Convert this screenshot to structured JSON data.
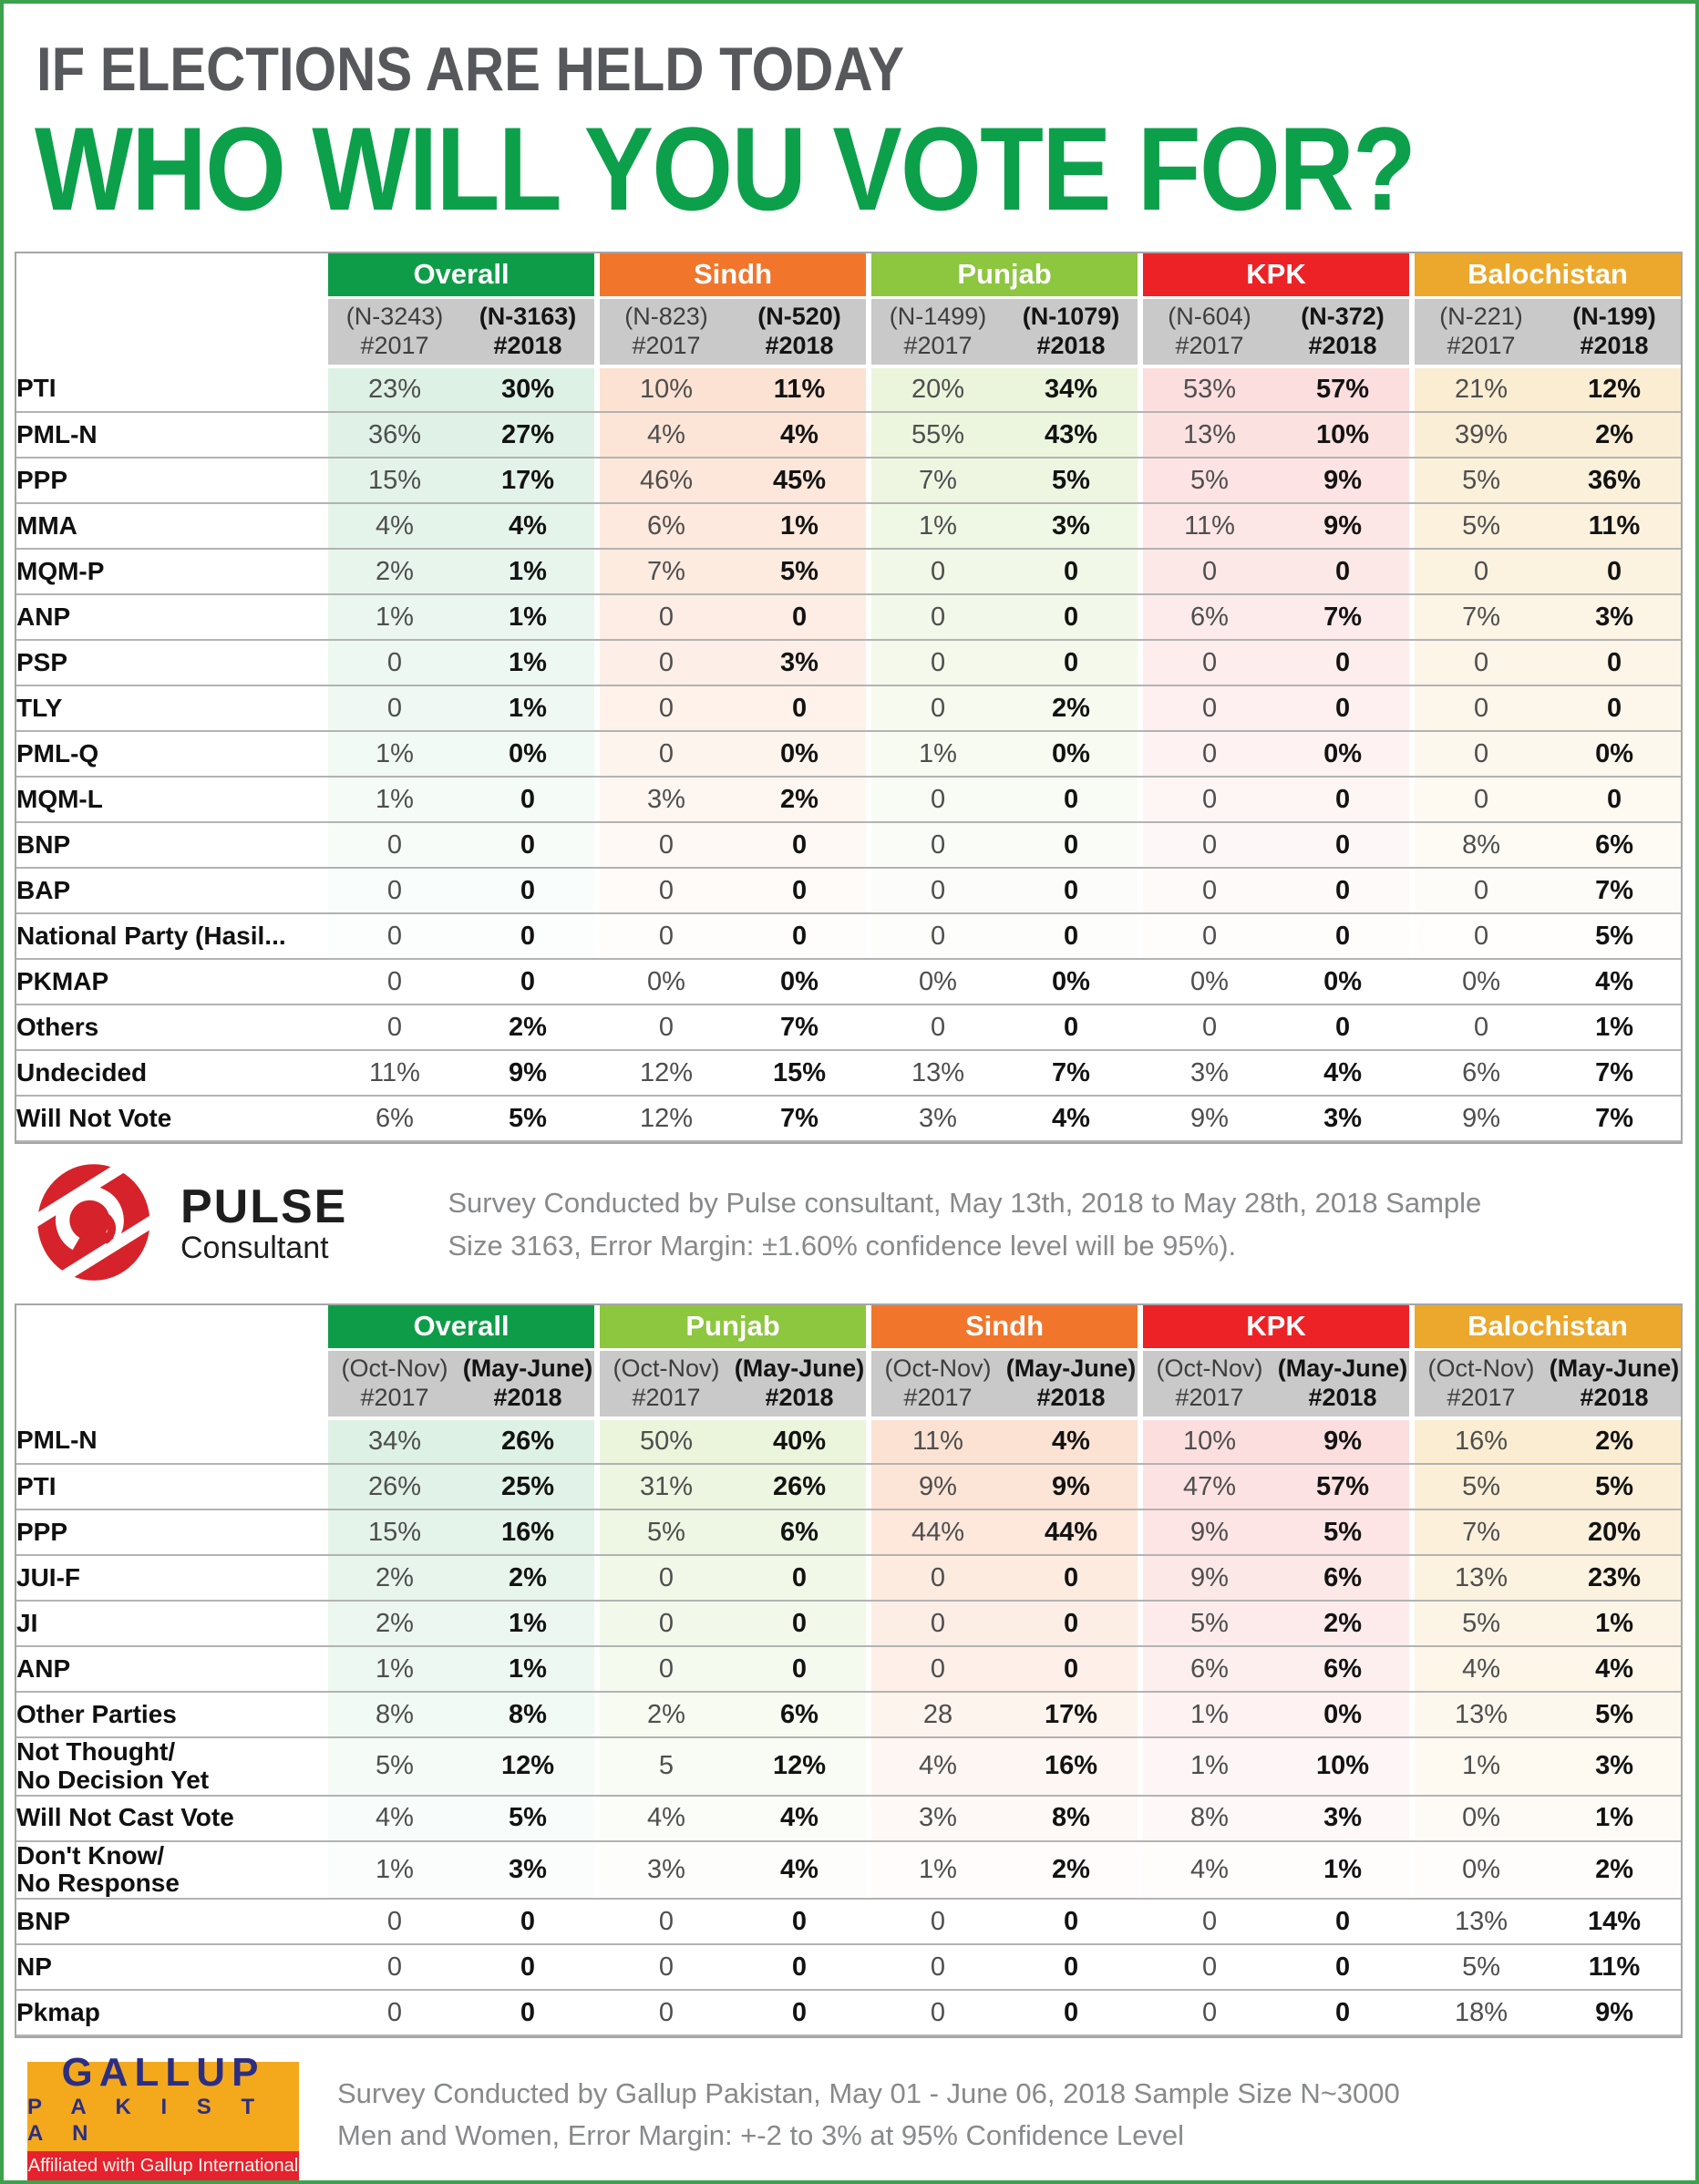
{
  "page": {
    "title_line1": "IF ELECTIONS ARE HELD TODAY",
    "title_line2": "WHO WILL YOU VOTE FOR?",
    "title_gray": "#57585B",
    "title_green": "#0DA04B",
    "page_border_green": "#3CA24D"
  },
  "chart_data": [
    {
      "type": "table",
      "title": "If elections are held today who will you vote for? (Pulse Consultant survey)",
      "fade_rows": 13,
      "groups": [
        {
          "label": "Overall",
          "color": "#0E9C48",
          "tint": "17,155,74",
          "alpha": 0.14,
          "sub2017": "(N-3243)",
          "sub2018": "(N-3163)",
          "year2017": "#2017",
          "year2018": "#2018"
        },
        {
          "label": "Sindh",
          "color": "#F1762C",
          "tint": "241,118,44",
          "alpha": 0.21,
          "sub2017": "(N-823)",
          "sub2018": "(N-520)",
          "year2017": "#2017",
          "year2018": "#2018"
        },
        {
          "label": "Punjab",
          "color": "#8DC63F",
          "tint": "141,198,63",
          "alpha": 0.18,
          "sub2017": "(N-1499)",
          "sub2018": "(N-1079)",
          "year2017": "#2017",
          "year2018": "#2018"
        },
        {
          "label": "KPK",
          "color": "#EC2227",
          "tint": "236,34,39",
          "alpha": 0.15,
          "sub2017": "(N-604)",
          "sub2018": "(N-372)",
          "year2017": "#2017",
          "year2018": "#2018"
        },
        {
          "label": "Balochistan",
          "color": "#EBA82C",
          "tint": "235,168,44",
          "alpha": 0.21,
          "sub2017": "(N-221)",
          "sub2018": "(N-199)",
          "year2017": "#2017",
          "year2018": "#2018"
        }
      ],
      "rows": [
        {
          "label": "PTI",
          "values": [
            "23%",
            "30%",
            "10%",
            "11%",
            "20%",
            "34%",
            "53%",
            "57%",
            "21%",
            "12%"
          ]
        },
        {
          "label": "PML-N",
          "values": [
            "36%",
            "27%",
            "4%",
            "4%",
            "55%",
            "43%",
            "13%",
            "10%",
            "39%",
            "2%"
          ]
        },
        {
          "label": "PPP",
          "values": [
            "15%",
            "17%",
            "46%",
            "45%",
            "7%",
            "5%",
            "5%",
            "9%",
            "5%",
            "36%"
          ]
        },
        {
          "label": "MMA",
          "values": [
            "4%",
            "4%",
            "6%",
            "1%",
            "1%",
            "3%",
            "11%",
            "9%",
            "5%",
            "11%"
          ]
        },
        {
          "label": "MQM-P",
          "values": [
            "2%",
            "1%",
            "7%",
            "5%",
            "0",
            "0",
            "0",
            "0",
            "0",
            "0"
          ]
        },
        {
          "label": "ANP",
          "values": [
            "1%",
            "1%",
            "0",
            "0",
            "0",
            "0",
            "6%",
            "7%",
            "7%",
            "3%"
          ]
        },
        {
          "label": "PSP",
          "values": [
            "0",
            "1%",
            "0",
            "3%",
            "0",
            "0",
            "0",
            "0",
            "0",
            "0"
          ]
        },
        {
          "label": "TLY",
          "values": [
            "0",
            "1%",
            "0",
            "0",
            "0",
            "2%",
            "0",
            "0",
            "0",
            "0"
          ]
        },
        {
          "label": "PML-Q",
          "values": [
            "1%",
            "0%",
            "0",
            "0%",
            "1%",
            "0%",
            "0",
            "0%",
            "0",
            "0%"
          ]
        },
        {
          "label": "MQM-L",
          "values": [
            "1%",
            "0",
            "3%",
            "2%",
            "0",
            "0",
            "0",
            "0",
            "0",
            "0"
          ]
        },
        {
          "label": "BNP",
          "values": [
            "0",
            "0",
            "0",
            "0",
            "0",
            "0",
            "0",
            "0",
            "8%",
            "6%"
          ]
        },
        {
          "label": "BAP",
          "values": [
            "0",
            "0",
            "0",
            "0",
            "0",
            "0",
            "0",
            "0",
            "0",
            "7%"
          ]
        },
        {
          "label": "National Party (Hasil...",
          "values": [
            "0",
            "0",
            "0",
            "0",
            "0",
            "0",
            "0",
            "0",
            "0",
            "5%"
          ]
        },
        {
          "label": "PKMAP",
          "values": [
            "0",
            "0",
            "0%",
            "0%",
            "0%",
            "0%",
            "0%",
            "0%",
            "0%",
            "4%"
          ]
        },
        {
          "label": "Others",
          "values": [
            "0",
            "2%",
            "0",
            "7%",
            "0",
            "0",
            "0",
            "0",
            "0",
            "1%"
          ]
        },
        {
          "label": "Undecided",
          "values": [
            "11%",
            "9%",
            "12%",
            "15%",
            "13%",
            "7%",
            "3%",
            "4%",
            "6%",
            "7%"
          ]
        },
        {
          "label": "Will Not Vote",
          "values": [
            "6%",
            "5%",
            "12%",
            "7%",
            "3%",
            "4%",
            "9%",
            "3%",
            "9%",
            "7%"
          ]
        }
      ]
    },
    {
      "type": "table",
      "title": "If elections are held today who will you vote for? (Gallup Pakistan survey)",
      "fade_rows": 10,
      "groups": [
        {
          "label": "Overall",
          "color": "#0E9C48",
          "tint": "17,155,74",
          "alpha": 0.14,
          "sub2017": "(Oct-Nov)",
          "sub2018": "(May-June)",
          "year2017": "#2017",
          "year2018": "#2018"
        },
        {
          "label": "Punjab",
          "color": "#8DC63F",
          "tint": "141,198,63",
          "alpha": 0.18,
          "sub2017": "(Oct-Nov)",
          "sub2018": "(May-June)",
          "year2017": "#2017",
          "year2018": "#2018"
        },
        {
          "label": "Sindh",
          "color": "#F1762C",
          "tint": "241,118,44",
          "alpha": 0.21,
          "sub2017": "(Oct-Nov)",
          "sub2018": "(May-June)",
          "year2017": "#2017",
          "year2018": "#2018"
        },
        {
          "label": "KPK",
          "color": "#EC2227",
          "tint": "236,34,39",
          "alpha": 0.15,
          "sub2017": "(Oct-Nov)",
          "sub2018": "(May-June)",
          "year2017": "#2017",
          "year2018": "#2018"
        },
        {
          "label": "Balochistan",
          "color": "#EBA82C",
          "tint": "235,168,44",
          "alpha": 0.21,
          "sub2017": "(Oct-Nov)",
          "sub2018": "(May-June)",
          "year2017": "#2017",
          "year2018": "#2018"
        }
      ],
      "rows": [
        {
          "label": "PML-N",
          "values": [
            "34%",
            "26%",
            "50%",
            "40%",
            "11%",
            "4%",
            "10%",
            "9%",
            "16%",
            "2%"
          ]
        },
        {
          "label": "PTI",
          "values": [
            "26%",
            "25%",
            "31%",
            "26%",
            "9%",
            "9%",
            "47%",
            "57%",
            "5%",
            "5%"
          ]
        },
        {
          "label": "PPP",
          "values": [
            "15%",
            "16%",
            "5%",
            "6%",
            "44%",
            "44%",
            "9%",
            "5%",
            "7%",
            "20%"
          ]
        },
        {
          "label": "JUI-F",
          "values": [
            "2%",
            "2%",
            "0",
            "0",
            "0",
            "0",
            "9%",
            "6%",
            "13%",
            "23%"
          ]
        },
        {
          "label": "JI",
          "values": [
            "2%",
            "1%",
            "0",
            "0",
            "0",
            "0",
            "5%",
            "2%",
            "5%",
            "1%"
          ]
        },
        {
          "label": "ANP",
          "values": [
            "1%",
            "1%",
            "0",
            "0",
            "0",
            "0",
            "6%",
            "6%",
            "4%",
            "4%"
          ]
        },
        {
          "label": "Other Parties",
          "values": [
            "8%",
            "8%",
            "2%",
            "6%",
            "28",
            "17%",
            "1%",
            "0%",
            "13%",
            "5%"
          ]
        },
        {
          "label": "Not Thought/\nNo Decision Yet",
          "values": [
            "5%",
            "12%",
            "5",
            "12%",
            "4%",
            "16%",
            "1%",
            "10%",
            "1%",
            "3%"
          ]
        },
        {
          "label": "Will Not Cast Vote",
          "values": [
            "4%",
            "5%",
            "4%",
            "4%",
            "3%",
            "8%",
            "8%",
            "3%",
            "0%",
            "1%"
          ]
        },
        {
          "label": "Don't Know/\nNo Response",
          "values": [
            "1%",
            "3%",
            "3%",
            "4%",
            "1%",
            "2%",
            "4%",
            "1%",
            "0%",
            "2%"
          ]
        },
        {
          "label": "BNP",
          "values": [
            "0",
            "0",
            "0",
            "0",
            "0",
            "0",
            "0",
            "0",
            "13%",
            "14%"
          ]
        },
        {
          "label": "NP",
          "values": [
            "0",
            "0",
            "0",
            "0",
            "0",
            "0",
            "0",
            "0",
            "5%",
            "11%"
          ]
        },
        {
          "label": "Pkmap",
          "values": [
            "0",
            "0",
            "0",
            "0",
            "0",
            "0",
            "0",
            "0",
            "18%",
            "9%"
          ]
        }
      ]
    }
  ],
  "pulse": {
    "name_top": "PULSE",
    "name_bottom": "Consultant",
    "logo_red": "#D6222A",
    "text_line1": "Survey Conducted by Pulse consultant, May 13th, 2018 to May 28th, 2018 Sample",
    "text_line2": "Size 3163, Error Margin: ±1.60% confidence level will be 95%)."
  },
  "gallup": {
    "logo_line1": "GALLUP",
    "logo_line2": "P A K I S T A N",
    "logo_strip": "Affiliated with Gallup International",
    "logo_bg": "#F4A91C",
    "logo_blue": "#2B2E83",
    "logo_red": "#E8212E",
    "text_line1": "Survey Conducted by Gallup Pakistan, May 01 - June 06, 2018 Sample Size N~3000",
    "text_line2": "Men and Women, Error Margin: +-2 to 3% at 95% Confidence Level"
  }
}
